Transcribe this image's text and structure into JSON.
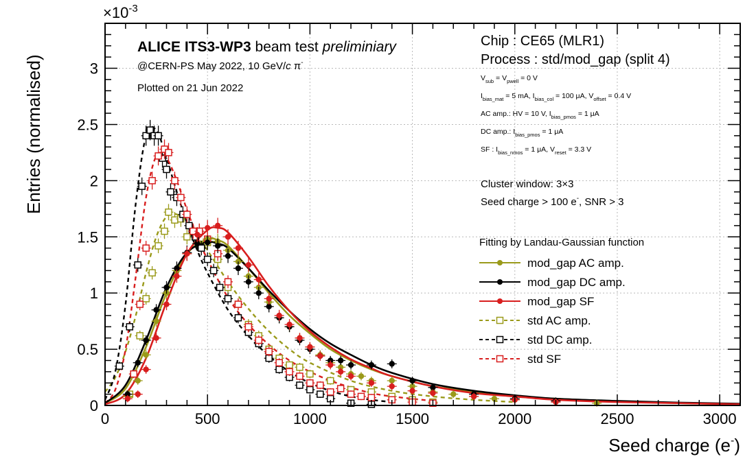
{
  "chart_data": {
    "type": "scatter",
    "title": "",
    "xlabel": "Seed charge (e",
    "xlabel_sup": "-",
    "xlabel_close": ")",
    "ylabel": "Entries (normalised)",
    "xlim": [
      0,
      3100
    ],
    "ylim": [
      0,
      3.4
    ],
    "y_exponent": "×10",
    "y_exponent_power": "-3",
    "x_ticks": [
      0,
      500,
      1000,
      1500,
      2000,
      2500,
      3000
    ],
    "x_tick_labels": [
      "0",
      "500",
      "1000",
      "1500",
      "2000",
      "2500",
      "3000"
    ],
    "y_ticks": [
      0,
      0.5,
      1,
      1.5,
      2,
      2.5,
      3
    ],
    "y_tick_labels": [
      "0",
      "0.5",
      "1",
      "1.5",
      "2",
      "2.5",
      "3"
    ],
    "grid": true,
    "legend_position": "middle-right",
    "series": [
      {
        "name": "mod_gap AC amp.",
        "color": "#9a9a1a",
        "marker": "filled-circle",
        "line": "solid",
        "x": [
          110,
          160,
          200,
          250,
          300,
          350,
          400,
          450,
          500,
          550,
          600,
          650,
          700,
          750,
          800,
          850,
          900,
          950,
          1000,
          1050,
          1100,
          1150,
          1200,
          1250,
          1300,
          1400,
          1500,
          1600,
          1700,
          1800,
          1900,
          2000,
          2200,
          2400
        ],
        "y": [
          0.08,
          0.22,
          0.45,
          0.75,
          1.0,
          1.2,
          1.35,
          1.44,
          1.48,
          1.46,
          1.38,
          1.28,
          1.15,
          1.05,
          0.92,
          0.78,
          0.7,
          0.6,
          0.52,
          0.45,
          0.38,
          0.34,
          0.28,
          0.26,
          0.22,
          0.22,
          0.17,
          0.12,
          0.1,
          0.08,
          0.06,
          0.05,
          0.03,
          0.02
        ],
        "fit_x": [
          0,
          100,
          200,
          300,
          400,
          500,
          550,
          600,
          700,
          800,
          900,
          1000,
          1100,
          1200,
          1300,
          1400,
          1600,
          1800,
          2000,
          2200,
          2500,
          2800,
          3100
        ],
        "fit_y": [
          0.02,
          0.15,
          0.52,
          1.0,
          1.35,
          1.48,
          1.47,
          1.42,
          1.22,
          1.0,
          0.8,
          0.64,
          0.5,
          0.4,
          0.32,
          0.26,
          0.17,
          0.12,
          0.08,
          0.06,
          0.035,
          0.02,
          0.012
        ]
      },
      {
        "name": "mod_gap DC amp.",
        "color": "#000000",
        "marker": "filled-circle",
        "line": "solid",
        "x": [
          110,
          160,
          200,
          250,
          300,
          350,
          400,
          450,
          500,
          550,
          600,
          650,
          700,
          750,
          800,
          850,
          900,
          950,
          1000,
          1050,
          1100,
          1150,
          1200,
          1300,
          1400,
          1500,
          1600,
          1800,
          2000,
          2200
        ],
        "y": [
          0.1,
          0.38,
          0.58,
          0.85,
          1.05,
          1.22,
          1.36,
          1.44,
          1.45,
          1.42,
          1.33,
          1.22,
          1.1,
          1.0,
          0.88,
          0.78,
          0.7,
          0.58,
          0.5,
          0.44,
          0.4,
          0.4,
          0.36,
          0.36,
          0.37,
          0.22,
          0.16,
          0.1,
          0.06,
          0.04
        ],
        "fit_x": [
          0,
          100,
          200,
          300,
          400,
          500,
          550,
          600,
          700,
          800,
          900,
          1000,
          1100,
          1200,
          1300,
          1400,
          1600,
          1800,
          2000,
          2200,
          2500,
          2800,
          3100
        ],
        "fit_y": [
          0.02,
          0.18,
          0.58,
          1.05,
          1.36,
          1.45,
          1.44,
          1.4,
          1.22,
          1.02,
          0.84,
          0.68,
          0.55,
          0.45,
          0.36,
          0.29,
          0.19,
          0.13,
          0.09,
          0.06,
          0.04,
          0.025,
          0.015
        ]
      },
      {
        "name": "mod_gap SF",
        "color": "#d81e1e",
        "marker": "filled-circle",
        "line": "solid",
        "x": [
          110,
          160,
          200,
          250,
          300,
          350,
          400,
          450,
          500,
          550,
          600,
          650,
          700,
          750,
          800,
          850,
          900,
          950,
          1000,
          1050,
          1100,
          1150,
          1200,
          1300,
          1400,
          1500,
          1600,
          1800,
          2000,
          2200
        ],
        "y": [
          0.06,
          0.1,
          0.32,
          0.6,
          0.9,
          1.15,
          1.35,
          1.52,
          1.58,
          1.6,
          1.5,
          1.4,
          1.25,
          1.12,
          0.95,
          0.8,
          0.72,
          0.6,
          0.52,
          0.44,
          0.36,
          0.3,
          0.26,
          0.2,
          0.17,
          0.13,
          0.11,
          0.08,
          0.05,
          0.03
        ],
        "fit_x": [
          0,
          100,
          200,
          300,
          400,
          500,
          550,
          600,
          700,
          800,
          900,
          1000,
          1100,
          1200,
          1300,
          1400,
          1600,
          1800,
          2000,
          2200,
          2500,
          2800,
          3100
        ],
        "fit_y": [
          0.01,
          0.1,
          0.42,
          0.92,
          1.35,
          1.56,
          1.58,
          1.54,
          1.32,
          1.06,
          0.84,
          0.66,
          0.52,
          0.41,
          0.33,
          0.26,
          0.17,
          0.11,
          0.08,
          0.05,
          0.03,
          0.02,
          0.01
        ]
      },
      {
        "name": "std AC amp.",
        "color": "#9a9a1a",
        "marker": "open-square",
        "line": "dashed",
        "x": [
          120,
          170,
          200,
          230,
          260,
          290,
          310,
          340,
          370,
          400,
          430,
          460,
          500,
          550,
          600,
          650,
          700,
          750,
          800,
          850,
          900,
          950,
          1000,
          1100,
          1200,
          1300,
          1400,
          1500,
          1600
        ],
        "y": [
          0.1,
          0.62,
          0.95,
          1.18,
          1.42,
          1.55,
          1.72,
          1.65,
          1.66,
          1.5,
          1.55,
          1.55,
          1.45,
          1.3,
          1.05,
          0.9,
          0.72,
          0.62,
          0.5,
          0.42,
          0.36,
          0.34,
          0.28,
          0.22,
          0.14,
          0.12,
          0.08,
          0.05,
          0.03
        ],
        "fit_x": [
          0,
          50,
          100,
          150,
          200,
          250,
          300,
          350,
          400,
          450,
          500,
          600,
          700,
          800,
          900,
          1000,
          1200,
          1400,
          1600,
          1800,
          2000
        ],
        "fit_y": [
          0.12,
          0.25,
          0.48,
          0.8,
          1.18,
          1.5,
          1.68,
          1.7,
          1.62,
          1.5,
          1.38,
          1.1,
          0.86,
          0.66,
          0.5,
          0.38,
          0.22,
          0.13,
          0.08,
          0.05,
          0.03
        ]
      },
      {
        "name": "std DC amp.",
        "color": "#000000",
        "marker": "open-square",
        "line": "dashed",
        "x": [
          70,
          120,
          160,
          180,
          200,
          220,
          240,
          260,
          280,
          300,
          320,
          350,
          380,
          410,
          440,
          470,
          500,
          530,
          560,
          600,
          650,
          700,
          750,
          800,
          850,
          900,
          950,
          1000,
          1050,
          1100,
          1200,
          1300
        ],
        "y": [
          0.35,
          0.7,
          1.25,
          1.95,
          2.4,
          2.45,
          2.4,
          2.4,
          2.2,
          2.1,
          1.9,
          1.85,
          1.7,
          1.6,
          1.5,
          1.4,
          1.3,
          1.2,
          1.05,
          0.95,
          0.78,
          0.65,
          0.55,
          0.42,
          0.32,
          0.25,
          0.18,
          0.14,
          0.1,
          0.06,
          0.02,
          0.01
        ],
        "fit_x": [
          0,
          50,
          100,
          150,
          200,
          250,
          300,
          350,
          400,
          450,
          500,
          600,
          700,
          800,
          900,
          1000,
          1100,
          1200,
          1300,
          1400
        ],
        "fit_y": [
          0.05,
          0.3,
          0.9,
          1.8,
          2.4,
          2.45,
          2.2,
          1.9,
          1.62,
          1.38,
          1.18,
          0.85,
          0.62,
          0.44,
          0.3,
          0.2,
          0.13,
          0.08,
          0.05,
          0.03
        ]
      },
      {
        "name": "std SF",
        "color": "#d81e1e",
        "marker": "open-square",
        "line": "dashed",
        "x": [
          140,
          170,
          200,
          230,
          260,
          290,
          310,
          340,
          370,
          400,
          430,
          460,
          500,
          550,
          600,
          650,
          700,
          750,
          800,
          850,
          900,
          950,
          1000,
          1050,
          1100,
          1150,
          1200,
          1250,
          1300,
          1400,
          1500,
          1600
        ],
        "y": [
          0.28,
          0.9,
          1.4,
          2.0,
          2.22,
          2.28,
          2.25,
          2.0,
          1.85,
          1.7,
          1.55,
          1.55,
          1.48,
          1.35,
          1.1,
          0.9,
          0.7,
          0.58,
          0.48,
          0.38,
          0.3,
          0.26,
          0.2,
          0.18,
          0.12,
          0.15,
          0.1,
          0.08,
          0.07,
          0.05,
          0.03,
          0.02
        ],
        "fit_x": [
          0,
          50,
          100,
          150,
          200,
          250,
          300,
          350,
          400,
          450,
          500,
          600,
          700,
          800,
          900,
          1000,
          1100,
          1200,
          1300,
          1400,
          1600
        ],
        "fit_y": [
          0.02,
          0.14,
          0.5,
          1.15,
          1.85,
          2.22,
          2.2,
          2.0,
          1.74,
          1.5,
          1.3,
          0.96,
          0.72,
          0.54,
          0.4,
          0.3,
          0.22,
          0.16,
          0.11,
          0.08,
          0.04
        ]
      }
    ],
    "annotations": {
      "experiment_bold": "ALICE ITS3-WP3",
      "experiment_rest": " beam test ",
      "experiment_italic": "preliminiary",
      "beam_prefix": "@CERN-PS May 2022, 10 GeV/",
      "beam_c": "c",
      "beam_pi": " π",
      "beam_pi_sup": "-",
      "plotted_on": "Plotted on 21 Jun 2022",
      "chip": "Chip : CE65 (MLR1)",
      "process": "Process : std/mod_gap (split 4)",
      "cluster_window": "Cluster window: 3×3",
      "seed_prefix": "Seed charge > 100 e",
      "seed_sup": "-",
      "seed_suffix": ", SNR > 3",
      "fitting": "Fitting by Landau-Gaussian function"
    },
    "params": {
      "vsub_v": "V",
      "vsub_sub": "sub",
      "vsub_eq": " = V",
      "vsub_sub2": "pwell",
      "vsub_val": " = 0 V",
      "ib_i": "I",
      "ib_sub1": "bias_mat",
      "ib_mid1": " = 5 mA, I",
      "ib_sub2": "bias_col",
      "ib_mid2": " = 100 μA, V",
      "ib_sub3": "offset",
      "ib_end": " = 0.4 V",
      "ac_pre": "AC amp.: HV = 10 V, I",
      "ac_sub": "bias_pmos",
      "ac_end": " = 1 μA",
      "dc_pre": "DC amp.: I",
      "dc_sub": "bias_pmos",
      "dc_end": " = 1 μA",
      "sf_pre": "SF : I",
      "sf_sub": "bias_nmos",
      "sf_mid": " = 1 μA, V",
      "sf_sub2": "reset",
      "sf_end": " = 3.3 V"
    }
  }
}
